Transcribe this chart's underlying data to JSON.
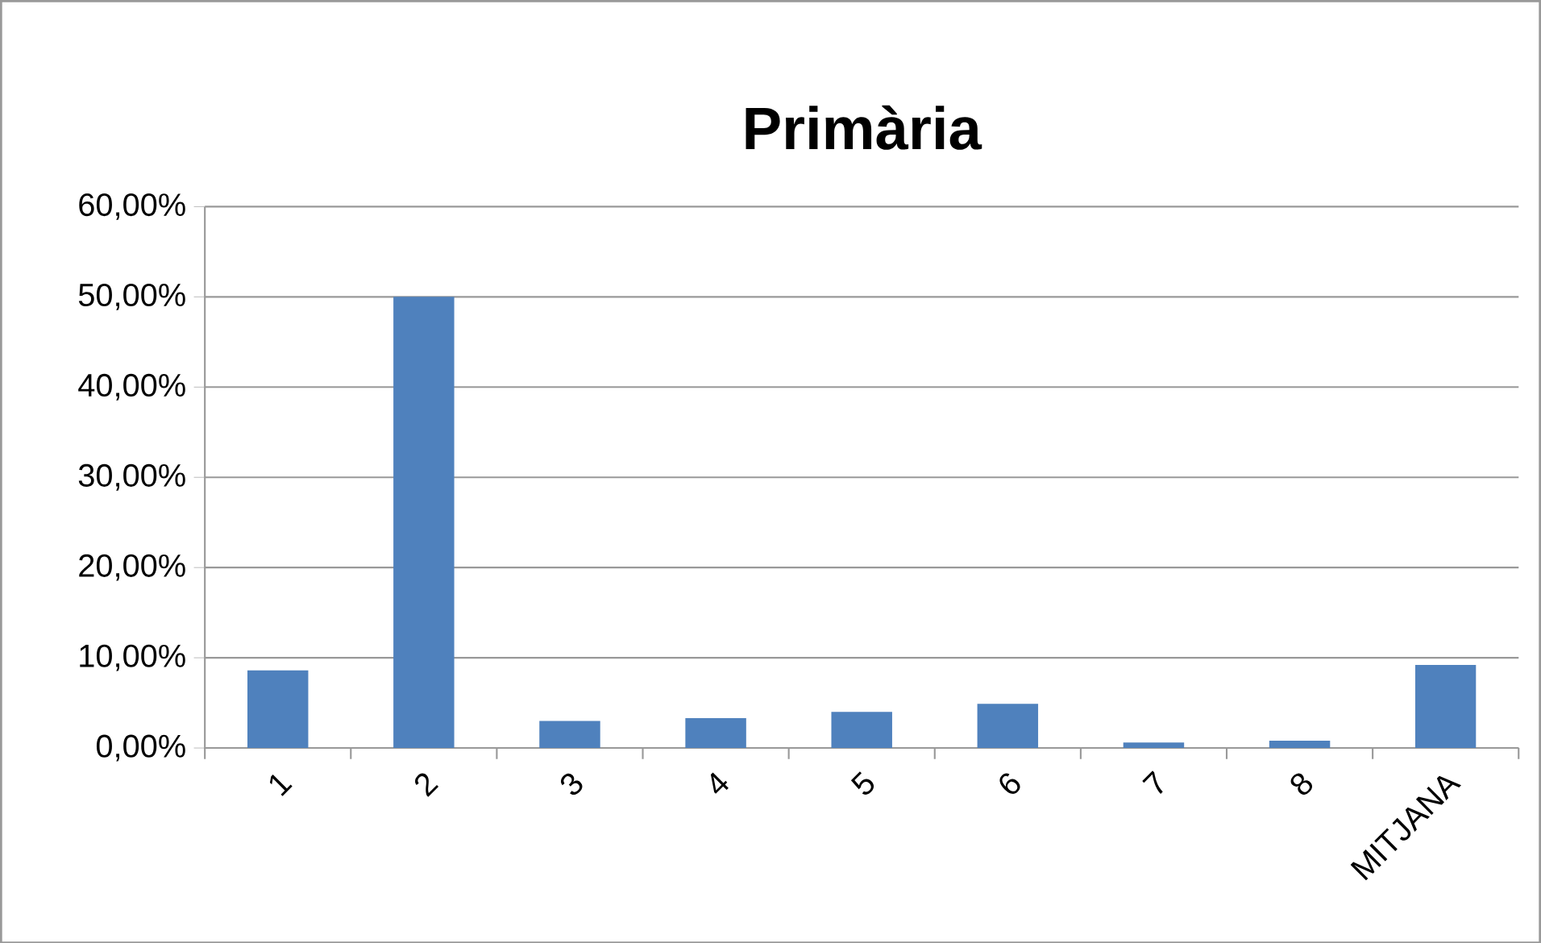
{
  "chart_data": {
    "type": "bar",
    "title": "Primària",
    "categories": [
      "1",
      "2",
      "3",
      "4",
      "5",
      "6",
      "7",
      "8",
      "MITJANA"
    ],
    "values": [
      8.6,
      50.0,
      3.0,
      3.3,
      4.0,
      4.9,
      0.6,
      0.8,
      9.2
    ],
    "color": "#4f81bd",
    "ylim": [
      0,
      60
    ],
    "yticks": [
      {
        "value": 0,
        "label": "0,00%"
      },
      {
        "value": 10,
        "label": "10,00%"
      },
      {
        "value": 20,
        "label": "20,00%"
      },
      {
        "value": 30,
        "label": "30,00%"
      },
      {
        "value": 40,
        "label": "40,00%"
      },
      {
        "value": 50,
        "label": "50,00%"
      },
      {
        "value": 60,
        "label": "60,00%"
      }
    ],
    "grid": "y"
  }
}
